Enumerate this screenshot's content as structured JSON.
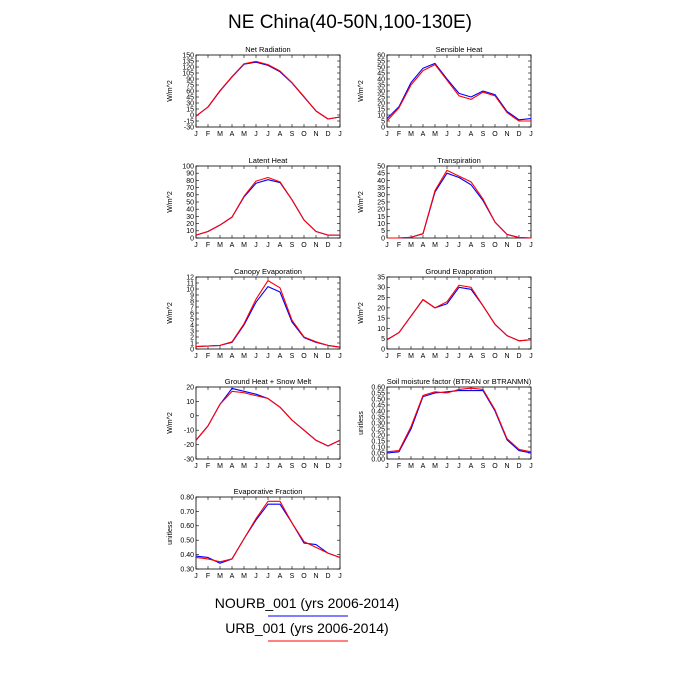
{
  "figure": {
    "title": "NE China(40-50N,100-130E)"
  },
  "colors": {
    "NOURB": "#0000ff",
    "URB": "#ff0000"
  },
  "legend": [
    {
      "label": "NOURB_001 (yrs 2006-2014)",
      "color": "#0000ff"
    },
    {
      "label": "URB_001 (yrs 2006-2014)",
      "color": "#ff0000"
    }
  ],
  "chart_data": [
    {
      "type": "line",
      "title": "Net Radiation",
      "ylabel": "W/m^2",
      "ylim": [
        -30,
        150
      ],
      "yticks": [
        -30,
        -15,
        0,
        15,
        30,
        45,
        60,
        75,
        90,
        105,
        120,
        135,
        150
      ],
      "xticks": [
        "J",
        "F",
        "M",
        "A",
        "M",
        "J",
        "J",
        "A",
        "S",
        "O",
        "N",
        "D",
        "J"
      ],
      "series": [
        {
          "name": "NOURB_001 (yrs 2006-2014)",
          "values": [
            -3,
            20,
            60,
            95,
            127,
            132,
            124,
            108,
            80,
            45,
            10,
            -10,
            -5
          ]
        },
        {
          "name": "URB_001 (yrs 2006-2014)",
          "values": [
            -3,
            20,
            61,
            96,
            128,
            134,
            126,
            110,
            81,
            46,
            10,
            -10,
            -5
          ]
        }
      ]
    },
    {
      "type": "line",
      "title": "Sensible Heat",
      "ylabel": "W/m^2",
      "ylim": [
        0,
        60
      ],
      "yticks": [
        0,
        5,
        10,
        15,
        20,
        25,
        30,
        35,
        40,
        45,
        50,
        55,
        60
      ],
      "xticks": [
        "J",
        "F",
        "M",
        "A",
        "M",
        "J",
        "J",
        "A",
        "S",
        "O",
        "N",
        "D",
        "J"
      ],
      "series": [
        {
          "name": "NOURB_001 (yrs 2006-2014)",
          "values": [
            7,
            17,
            37,
            49,
            53,
            40,
            28,
            25,
            30,
            27,
            13,
            6,
            7
          ]
        },
        {
          "name": "URB_001 (yrs 2006-2014)",
          "values": [
            5,
            16,
            35,
            47,
            52,
            39,
            26,
            23,
            29,
            26,
            12,
            5,
            5
          ]
        }
      ]
    },
    {
      "type": "line",
      "title": "Latent Heat",
      "ylabel": "W/m^2",
      "ylim": [
        0,
        100
      ],
      "yticks": [
        0,
        10,
        20,
        30,
        40,
        50,
        60,
        70,
        80,
        90,
        100
      ],
      "xticks": [
        "J",
        "F",
        "M",
        "A",
        "M",
        "J",
        "J",
        "A",
        "S",
        "O",
        "N",
        "D",
        "J"
      ],
      "series": [
        {
          "name": "NOURB_001 (yrs 2006-2014)",
          "values": [
            4,
            9,
            18,
            29,
            57,
            76,
            81,
            77,
            53,
            25,
            9,
            4,
            4
          ]
        },
        {
          "name": "URB_001 (yrs 2006-2014)",
          "values": [
            4,
            9,
            18,
            29,
            58,
            79,
            84,
            78,
            53,
            25,
            9,
            4,
            4
          ]
        }
      ]
    },
    {
      "type": "line",
      "title": "Transpiration",
      "ylabel": "W/m^2",
      "ylim": [
        0,
        50
      ],
      "yticks": [
        0,
        5,
        10,
        15,
        20,
        25,
        30,
        35,
        40,
        45,
        50
      ],
      "xticks": [
        "J",
        "F",
        "M",
        "A",
        "M",
        "J",
        "J",
        "A",
        "S",
        "O",
        "N",
        "D",
        "J"
      ],
      "series": [
        {
          "name": "NOURB_001 (yrs 2006-2014)",
          "values": [
            0,
            0,
            0.5,
            3,
            32,
            45,
            42,
            37,
            26,
            11,
            2.5,
            0.3,
            0
          ]
        },
        {
          "name": "URB_001 (yrs 2006-2014)",
          "values": [
            0,
            0,
            0.5,
            3,
            33,
            47,
            43,
            39,
            27,
            11,
            2.5,
            0.3,
            0
          ]
        }
      ]
    },
    {
      "type": "line",
      "title": "Canopy Evaporation",
      "ylabel": "W/m^2",
      "ylim": [
        0,
        12
      ],
      "yticks": [
        0,
        1,
        2,
        3,
        4,
        5,
        6,
        7,
        8,
        9,
        10,
        11,
        12
      ],
      "xticks": [
        "J",
        "F",
        "M",
        "A",
        "M",
        "J",
        "J",
        "A",
        "S",
        "O",
        "N",
        "D",
        "J"
      ],
      "series": [
        {
          "name": "NOURB_001 (yrs 2006-2014)",
          "values": [
            0.4,
            0.5,
            0.6,
            1.1,
            4.0,
            7.8,
            10.4,
            9.5,
            4.5,
            1.9,
            1.1,
            0.6,
            0.3
          ]
        },
        {
          "name": "URB_001 (yrs 2006-2014)",
          "values": [
            0.4,
            0.5,
            0.6,
            1.2,
            4.2,
            8.3,
            11.4,
            10.2,
            4.8,
            2.0,
            1.2,
            0.6,
            0.3
          ]
        }
      ]
    },
    {
      "type": "line",
      "title": "Ground Evaporation",
      "ylabel": "W/m^2",
      "ylim": [
        0,
        35
      ],
      "yticks": [
        0,
        5,
        10,
        15,
        20,
        25,
        30,
        35
      ],
      "xticks": [
        "J",
        "F",
        "M",
        "A",
        "M",
        "J",
        "J",
        "A",
        "S",
        "O",
        "N",
        "D",
        "J"
      ],
      "series": [
        {
          "name": "NOURB_001 (yrs 2006-2014)",
          "values": [
            4.5,
            8,
            16,
            24,
            20,
            22,
            30,
            29,
            21,
            12,
            6.5,
            4,
            4.5
          ]
        },
        {
          "name": "URB_001 (yrs 2006-2014)",
          "values": [
            4.5,
            8,
            16,
            24,
            20,
            23,
            31,
            30,
            21,
            12,
            6.5,
            4,
            4.5
          ]
        }
      ]
    },
    {
      "type": "line",
      "title": "Ground Heat + Snow Melt",
      "ylabel": "W/m^2",
      "ylim": [
        -30,
        20
      ],
      "yticks": [
        -30,
        -20,
        -10,
        0,
        10,
        20
      ],
      "xticks": [
        "J",
        "F",
        "M",
        "A",
        "M",
        "J",
        "J",
        "A",
        "S",
        "O",
        "N",
        "D",
        "J"
      ],
      "series": [
        {
          "name": "NOURB_001 (yrs 2006-2014)",
          "values": [
            -17,
            -7,
            8,
            19,
            17,
            15,
            12,
            6,
            -3,
            -10,
            -17,
            -21,
            -17
          ]
        },
        {
          "name": "URB_001 (yrs 2006-2014)",
          "values": [
            -17,
            -7,
            8,
            17,
            16,
            14,
            12,
            6,
            -3,
            -10,
            -17,
            -21,
            -17
          ]
        }
      ]
    },
    {
      "type": "line",
      "title": "Soil moisture factor (BTRAN or BTRANMN)",
      "ylabel": "unitless",
      "ylim": [
        0.0,
        0.6
      ],
      "yticks": [
        0.0,
        0.05,
        0.1,
        0.15,
        0.2,
        0.25,
        0.3,
        0.35,
        0.4,
        0.45,
        0.5,
        0.55,
        0.6
      ],
      "ytick_labels": [
        "0.00",
        "0.05",
        "0.10",
        "0.15",
        "0.20",
        "0.25",
        "0.30",
        "0.35",
        "0.40",
        "0.45",
        "0.50",
        "0.55",
        "0.60"
      ],
      "xticks": [
        "J",
        "F",
        "M",
        "A",
        "M",
        "J",
        "J",
        "A",
        "S",
        "O",
        "N",
        "D",
        "J"
      ],
      "series": [
        {
          "name": "NOURB_001 (yrs 2006-2014)",
          "values": [
            0.05,
            0.06,
            0.25,
            0.52,
            0.55,
            0.56,
            0.57,
            0.57,
            0.57,
            0.4,
            0.16,
            0.07,
            0.05
          ]
        },
        {
          "name": "URB_001 (yrs 2006-2014)",
          "values": [
            0.06,
            0.07,
            0.27,
            0.53,
            0.56,
            0.55,
            0.58,
            0.59,
            0.58,
            0.41,
            0.17,
            0.08,
            0.06
          ]
        }
      ]
    },
    {
      "type": "line",
      "title": "Evaporative Fraction",
      "ylabel": "unitless",
      "ylim": [
        0.3,
        0.8
      ],
      "yticks": [
        0.3,
        0.4,
        0.5,
        0.6,
        0.7,
        0.8
      ],
      "ytick_labels": [
        "0.30",
        "0.40",
        "0.50",
        "0.60",
        "0.70",
        "0.80"
      ],
      "xticks": [
        "J",
        "F",
        "M",
        "A",
        "M",
        "J",
        "J",
        "A",
        "S",
        "O",
        "N",
        "D",
        "J"
      ],
      "series": [
        {
          "name": "NOURB_001 (yrs 2006-2014)",
          "values": [
            0.39,
            0.38,
            0.34,
            0.37,
            0.51,
            0.64,
            0.75,
            0.75,
            0.62,
            0.48,
            0.47,
            0.41,
            0.38
          ]
        },
        {
          "name": "URB_001 (yrs 2006-2014)",
          "values": [
            0.38,
            0.37,
            0.35,
            0.37,
            0.51,
            0.65,
            0.77,
            0.77,
            0.62,
            0.49,
            0.45,
            0.41,
            0.38
          ]
        }
      ]
    }
  ]
}
